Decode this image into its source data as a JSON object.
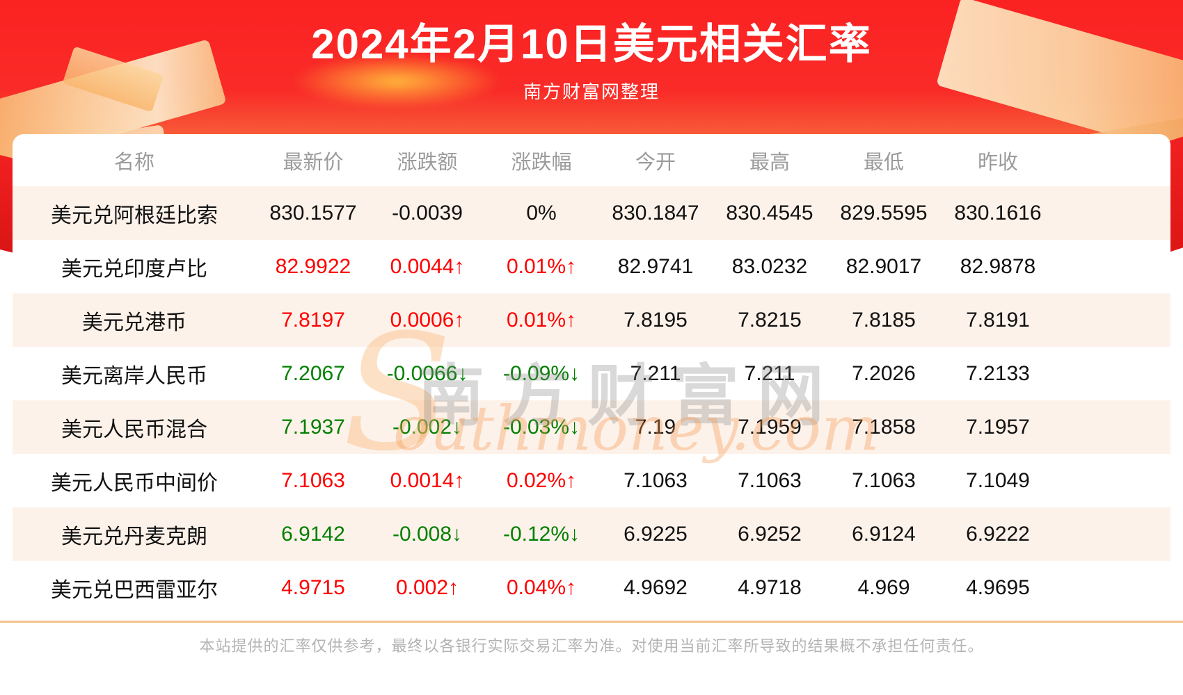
{
  "header": {
    "title": "2024年2月10日美元相关汇率",
    "subtitle": "南方财富网整理"
  },
  "table": {
    "columns": [
      "名称",
      "最新价",
      "涨跌额",
      "涨跌幅",
      "今开",
      "最高",
      "最低",
      "昨收"
    ],
    "rows": [
      {
        "name": "美元兑阿根廷比索",
        "latest": "830.1577",
        "change": "-0.0039",
        "change_pct": "0%",
        "open": "830.1847",
        "high": "830.4545",
        "low": "829.5595",
        "prev_close": "830.1616",
        "trend": "flat"
      },
      {
        "name": "美元兑印度卢比",
        "latest": "82.9922",
        "change": "0.0044↑",
        "change_pct": "0.01%↑",
        "open": "82.9741",
        "high": "83.0232",
        "low": "82.9017",
        "prev_close": "82.9878",
        "trend": "up"
      },
      {
        "name": "美元兑港币",
        "latest": "7.8197",
        "change": "0.0006↑",
        "change_pct": "0.01%↑",
        "open": "7.8195",
        "high": "7.8215",
        "low": "7.8185",
        "prev_close": "7.8191",
        "trend": "up"
      },
      {
        "name": "美元离岸人民币",
        "latest": "7.2067",
        "change": "-0.0066↓",
        "change_pct": "-0.09%↓",
        "open": "7.211",
        "high": "7.211",
        "low": "7.2026",
        "prev_close": "7.2133",
        "trend": "down"
      },
      {
        "name": "美元人民币混合",
        "latest": "7.1937",
        "change": "-0.002↓",
        "change_pct": "-0.03%↓",
        "open": "7.19",
        "high": "7.1959",
        "low": "7.1858",
        "prev_close": "7.1957",
        "trend": "down"
      },
      {
        "name": "美元人民币中间价",
        "latest": "7.1063",
        "change": "0.0014↑",
        "change_pct": "0.02%↑",
        "open": "7.1063",
        "high": "7.1063",
        "low": "7.1063",
        "prev_close": "7.1049",
        "trend": "up"
      },
      {
        "name": "美元兑丹麦克朗",
        "latest": "6.9142",
        "change": "-0.008↓",
        "change_pct": "-0.12%↓",
        "open": "6.9225",
        "high": "6.9252",
        "low": "6.9124",
        "prev_close": "6.9222",
        "trend": "down"
      },
      {
        "name": "美元兑巴西雷亚尔",
        "latest": "4.9715",
        "change": "0.002↑",
        "change_pct": "0.04%↑",
        "open": "4.9692",
        "high": "4.9718",
        "low": "4.969",
        "prev_close": "4.9695",
        "trend": "up"
      }
    ]
  },
  "watermark": {
    "cn": "南方财富网",
    "en_initial": "S",
    "en_rest": "outhmoney.com"
  },
  "footer": {
    "disclaimer": "本站提供的汇率仅供参考，最终以各银行实际交易汇率为准。对使用当前汇率所导致的结果概不承担任何责任。"
  },
  "colors": {
    "up": "#fe0000",
    "down": "#008000",
    "neutral": "#111111",
    "banner_red": "#fa2424",
    "row_alt_pink": "#fdf2ea",
    "header_text_gray": "#9b9b9b",
    "divider_orange": "#f5c289",
    "disclaimer_gray": "#b3b3b3"
  }
}
